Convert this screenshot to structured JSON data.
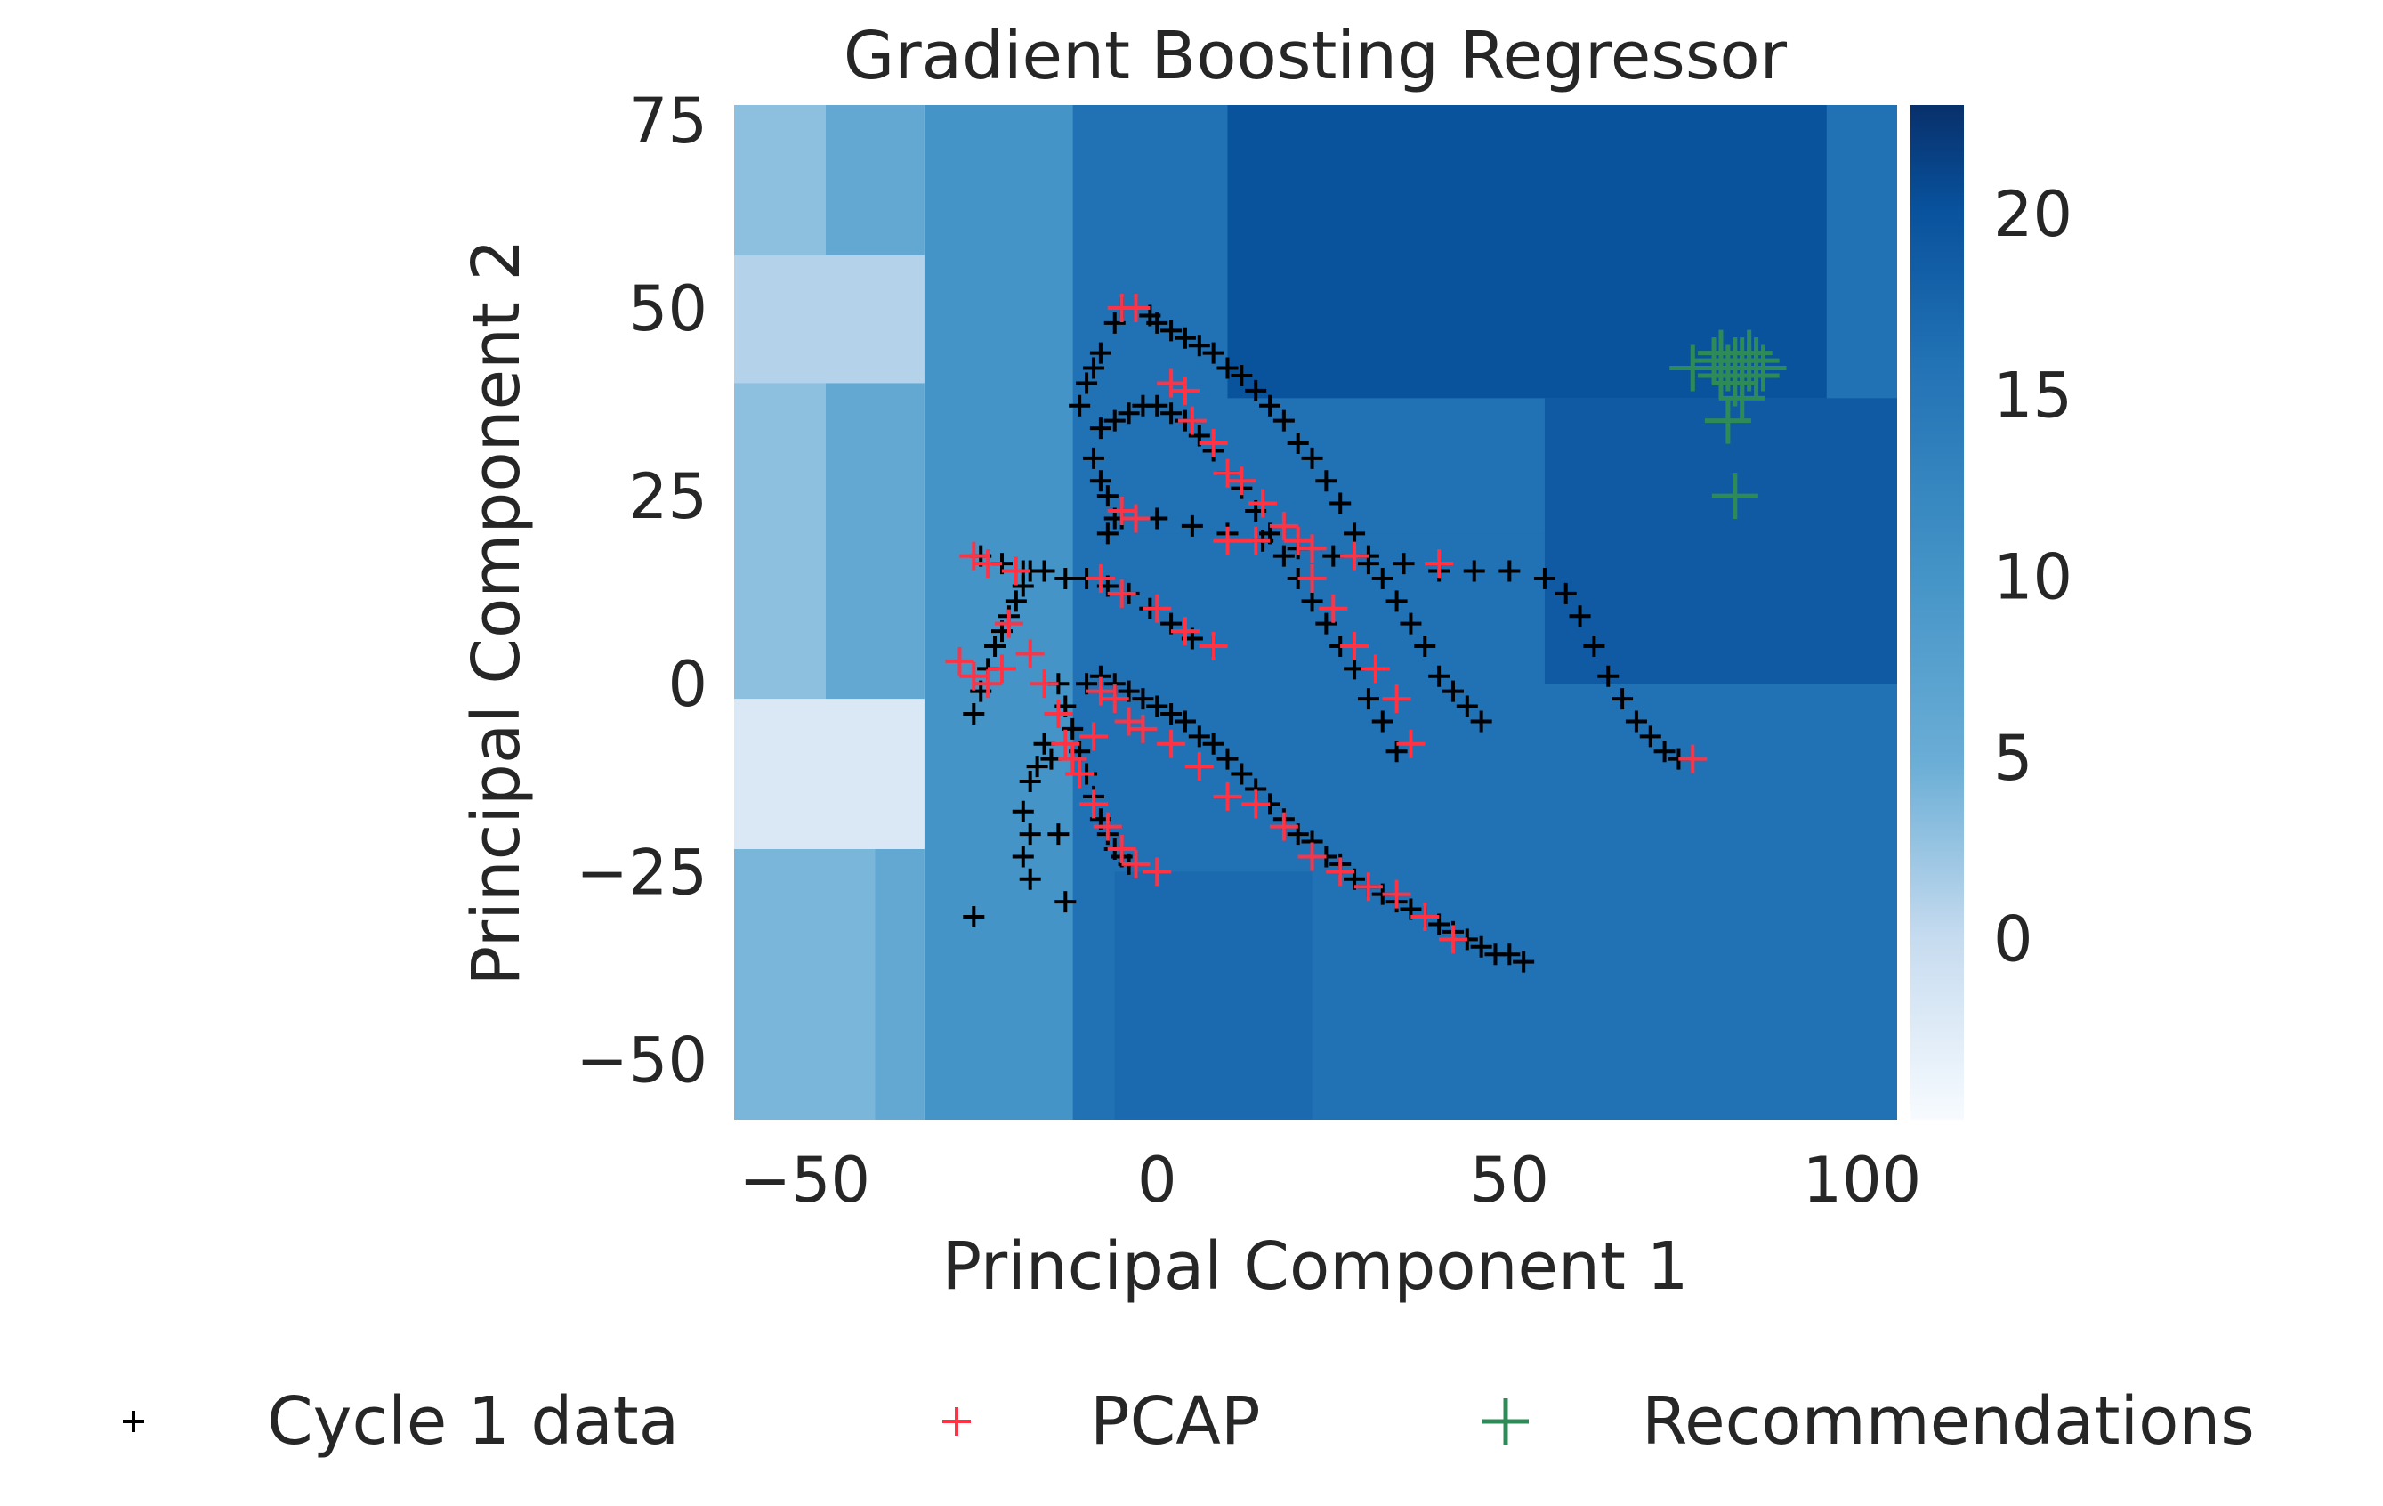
{
  "chart_data": {
    "type": "scatter",
    "title": "Gradient Boosting Regressor",
    "xlabel": "Principal Component 1",
    "ylabel": "Principal Component 2",
    "xlim": [
      -60,
      105
    ],
    "ylim": [
      -58,
      77
    ],
    "x_ticks": [
      -50,
      0,
      50,
      100
    ],
    "x_tick_labels": [
      "−50",
      "0",
      "50",
      "100"
    ],
    "y_ticks": [
      75,
      50,
      25,
      0,
      -25,
      -50
    ],
    "y_tick_labels": [
      "75",
      "50",
      "25",
      "0",
      "−25",
      "−50"
    ],
    "grid": false,
    "background": {
      "type": "heatmap",
      "colormap": "Blues",
      "colorbar_range": [
        -5,
        23
      ],
      "colorbar_ticks": [
        20,
        15,
        10,
        5,
        0
      ],
      "colorbar_tick_labels": [
        "20",
        "15",
        "10",
        "5",
        "0"
      ],
      "regions": [
        {
          "x": [
            -60,
            -47
          ],
          "y": [
            -58,
            77
          ],
          "value": 3
        },
        {
          "x": [
            -47,
            -33
          ],
          "y": [
            -58,
            77
          ],
          "value": 6
        },
        {
          "x": [
            -33,
            -12
          ],
          "y": [
            -58,
            77
          ],
          "value": 10
        },
        {
          "x": [
            -12,
            105
          ],
          "y": [
            -58,
            77
          ],
          "value": 16
        },
        {
          "x": [
            -60,
            -33
          ],
          "y": [
            40,
            57
          ],
          "value": 1
        },
        {
          "x": [
            -60,
            -33
          ],
          "y": [
            -22,
            -2
          ],
          "value": -2
        },
        {
          "x": [
            -60,
            -40
          ],
          "y": [
            -58,
            -22
          ],
          "value": 4
        },
        {
          "x": [
            -6,
            105
          ],
          "y": [
            -58,
            20
          ],
          "value": 16
        },
        {
          "x": [
            10,
            95
          ],
          "y": [
            38,
            77
          ],
          "value": 20
        },
        {
          "x": [
            55,
            105
          ],
          "y": [
            0,
            38
          ],
          "value": 19
        },
        {
          "x": [
            -6,
            22
          ],
          "y": [
            -58,
            -25
          ],
          "value": 17
        }
      ]
    },
    "legend": {
      "placement": "bottom",
      "entries": [
        {
          "label": "Cycle 1 data",
          "color": "#000000",
          "marker": "+"
        },
        {
          "label": "PCAP",
          "color": "#ff3344",
          "marker": "+"
        },
        {
          "label": "Recommendations",
          "color": "#2e8b57",
          "marker": "+"
        }
      ]
    },
    "series": [
      {
        "name": "Cycle 1 data",
        "color": "#000000",
        "marker": "+",
        "points": [
          [
            -5,
            50
          ],
          [
            -3,
            50
          ],
          [
            -1,
            49
          ],
          [
            0,
            48
          ],
          [
            2,
            47
          ],
          [
            4,
            46
          ],
          [
            6,
            45
          ],
          [
            8,
            44
          ],
          [
            10,
            42
          ],
          [
            12,
            41
          ],
          [
            14,
            39
          ],
          [
            16,
            37
          ],
          [
            18,
            35
          ],
          [
            20,
            32
          ],
          [
            22,
            30
          ],
          [
            24,
            27
          ],
          [
            26,
            24
          ],
          [
            28,
            20
          ],
          [
            30,
            17
          ],
          [
            32,
            14
          ],
          [
            34,
            11
          ],
          [
            36,
            8
          ],
          [
            38,
            5
          ],
          [
            40,
            1
          ],
          [
            42,
            -1
          ],
          [
            44,
            -3
          ],
          [
            46,
            -5
          ],
          [
            -6,
            48
          ],
          [
            -8,
            44
          ],
          [
            -9,
            42
          ],
          [
            -10,
            40
          ],
          [
            -11,
            37
          ],
          [
            -8,
            34
          ],
          [
            -6,
            35
          ],
          [
            -4,
            36
          ],
          [
            -2,
            37
          ],
          [
            0,
            37
          ],
          [
            2,
            36
          ],
          [
            4,
            35
          ],
          [
            6,
            33
          ],
          [
            8,
            31
          ],
          [
            10,
            28
          ],
          [
            12,
            26
          ],
          [
            14,
            23
          ],
          [
            16,
            20
          ],
          [
            18,
            17
          ],
          [
            20,
            14
          ],
          [
            22,
            11
          ],
          [
            24,
            8
          ],
          [
            26,
            5
          ],
          [
            28,
            2
          ],
          [
            30,
            -2
          ],
          [
            32,
            -5
          ],
          [
            34,
            -9
          ],
          [
            -9,
            30
          ],
          [
            -8,
            27
          ],
          [
            -7,
            25
          ],
          [
            -6,
            22
          ],
          [
            -7,
            20
          ],
          [
            -5,
            22
          ],
          [
            0,
            22
          ],
          [
            5,
            21
          ],
          [
            10,
            20
          ],
          [
            15,
            19
          ],
          [
            20,
            18
          ],
          [
            25,
            17
          ],
          [
            30,
            16
          ],
          [
            35,
            16
          ],
          [
            40,
            15
          ],
          [
            45,
            15
          ],
          [
            50,
            15
          ],
          [
            55,
            14
          ],
          [
            58,
            12
          ],
          [
            60,
            9
          ],
          [
            62,
            5
          ],
          [
            64,
            1
          ],
          [
            66,
            -2
          ],
          [
            68,
            -5
          ],
          [
            70,
            -7
          ],
          [
            72,
            -9
          ],
          [
            74,
            -10
          ],
          [
            -25,
            17
          ],
          [
            -22,
            16
          ],
          [
            -19,
            15
          ],
          [
            -16,
            15
          ],
          [
            -13,
            14
          ],
          [
            -10,
            14
          ],
          [
            -7,
            13
          ],
          [
            -4,
            12
          ],
          [
            -1,
            10
          ],
          [
            2,
            8
          ],
          [
            5,
            6
          ],
          [
            8,
            5
          ],
          [
            -26,
            -4
          ],
          [
            -25,
            -1
          ],
          [
            -24,
            2
          ],
          [
            -23,
            5
          ],
          [
            -22,
            7
          ],
          [
            -21,
            9
          ],
          [
            -20,
            11
          ],
          [
            -19,
            13
          ],
          [
            -18,
            15
          ],
          [
            -14,
            0
          ],
          [
            -13,
            -3
          ],
          [
            -12,
            -6
          ],
          [
            -11,
            -9
          ],
          [
            -10,
            -12
          ],
          [
            -9,
            -15
          ],
          [
            -8,
            -18
          ],
          [
            -7,
            -20
          ],
          [
            -6,
            -22
          ],
          [
            -5,
            -23
          ],
          [
            -4,
            -24
          ],
          [
            -10,
            0
          ],
          [
            -8,
            1
          ],
          [
            -6,
            0
          ],
          [
            -4,
            -1
          ],
          [
            -2,
            -2
          ],
          [
            0,
            -3
          ],
          [
            2,
            -4
          ],
          [
            4,
            -5
          ],
          [
            6,
            -7
          ],
          [
            8,
            -8
          ],
          [
            10,
            -10
          ],
          [
            12,
            -12
          ],
          [
            14,
            -14
          ],
          [
            16,
            -16
          ],
          [
            18,
            -18
          ],
          [
            20,
            -20
          ],
          [
            22,
            -21
          ],
          [
            24,
            -23
          ],
          [
            26,
            -24
          ],
          [
            28,
            -26
          ],
          [
            30,
            -27
          ],
          [
            32,
            -28
          ],
          [
            34,
            -29
          ],
          [
            36,
            -30
          ],
          [
            38,
            -31
          ],
          [
            40,
            -32
          ],
          [
            42,
            -33
          ],
          [
            44,
            -34
          ],
          [
            46,
            -35
          ],
          [
            48,
            -36
          ],
          [
            50,
            -36
          ],
          [
            52,
            -37
          ],
          [
            -16,
            -8
          ],
          [
            -17,
            -11
          ],
          [
            -18,
            -13
          ],
          [
            -19,
            -17
          ],
          [
            -18,
            -20
          ],
          [
            -15,
            -10
          ],
          [
            -14,
            -20
          ],
          [
            -13,
            -29
          ],
          [
            -26,
            -31
          ],
          [
            -18,
            -26
          ],
          [
            -19,
            -23
          ]
        ]
      },
      {
        "name": "PCAP",
        "color": "#ff3344",
        "marker": "+",
        "points": [
          [
            -5,
            50
          ],
          [
            -3,
            50
          ],
          [
            2,
            40
          ],
          [
            4,
            39
          ],
          [
            5,
            35
          ],
          [
            8,
            32
          ],
          [
            10,
            28
          ],
          [
            12,
            27
          ],
          [
            15,
            24
          ],
          [
            18,
            21
          ],
          [
            20,
            19
          ],
          [
            22,
            14
          ],
          [
            25,
            10
          ],
          [
            28,
            5
          ],
          [
            31,
            2
          ],
          [
            34,
            -2
          ],
          [
            36,
            -8
          ],
          [
            -5,
            23
          ],
          [
            -3,
            22
          ],
          [
            10,
            19
          ],
          [
            14,
            19
          ],
          [
            22,
            18
          ],
          [
            28,
            17
          ],
          [
            40,
            16
          ],
          [
            76,
            -10
          ],
          [
            -26,
            17
          ],
          [
            -24,
            16
          ],
          [
            -20,
            15
          ],
          [
            -8,
            14
          ],
          [
            -5,
            12
          ],
          [
            0,
            10
          ],
          [
            4,
            7
          ],
          [
            8,
            5
          ],
          [
            -28,
            3
          ],
          [
            -26,
            1
          ],
          [
            -24,
            0
          ],
          [
            -22,
            2
          ],
          [
            -21,
            8
          ],
          [
            -18,
            4
          ],
          [
            -16,
            0
          ],
          [
            -14,
            -4
          ],
          [
            -13,
            -8
          ],
          [
            -11,
            -12
          ],
          [
            -9,
            -16
          ],
          [
            -7,
            -19
          ],
          [
            -5,
            -22
          ],
          [
            -3,
            -24
          ],
          [
            0,
            -25
          ],
          [
            -8,
            -1
          ],
          [
            -6,
            -2
          ],
          [
            -4,
            -5
          ],
          [
            -2,
            -6
          ],
          [
            2,
            -8
          ],
          [
            6,
            -11
          ],
          [
            10,
            -15
          ],
          [
            14,
            -16
          ],
          [
            18,
            -19
          ],
          [
            22,
            -23
          ],
          [
            26,
            -25
          ],
          [
            30,
            -27
          ],
          [
            34,
            -28
          ],
          [
            38,
            -31
          ],
          [
            42,
            -34
          ],
          [
            -9,
            -7
          ],
          [
            -12,
            -10
          ]
        ]
      },
      {
        "name": "Recommendations",
        "color": "#2e8b57",
        "marker": "+",
        "points": [
          [
            76,
            42
          ],
          [
            79,
            43
          ],
          [
            80,
            41
          ],
          [
            81,
            42
          ],
          [
            82,
            40
          ],
          [
            82,
            43
          ],
          [
            83,
            41
          ],
          [
            83,
            38
          ],
          [
            84,
            42
          ],
          [
            84,
            44
          ],
          [
            85,
            41
          ],
          [
            85,
            43
          ],
          [
            86,
            42
          ],
          [
            80,
            44
          ],
          [
            81,
            35
          ],
          [
            82,
            25
          ],
          [
            83,
            43
          ]
        ]
      }
    ]
  }
}
